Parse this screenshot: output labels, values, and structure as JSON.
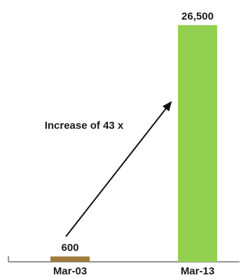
{
  "chart_data": {
    "type": "bar",
    "categories": [
      "Mar-03",
      "Mar-13"
    ],
    "values": [
      600,
      26500
    ],
    "value_labels": [
      "600",
      "26,500"
    ],
    "colors": [
      "#a07d3e",
      "#92d050"
    ],
    "annotation": {
      "text": "Increase of 43 x",
      "from_category": "Mar-03",
      "to_category": "Mar-13"
    },
    "title": "",
    "xlabel": "",
    "ylabel": "",
    "ylim": [
      0,
      26500
    ],
    "grid": false,
    "legend": "none"
  }
}
